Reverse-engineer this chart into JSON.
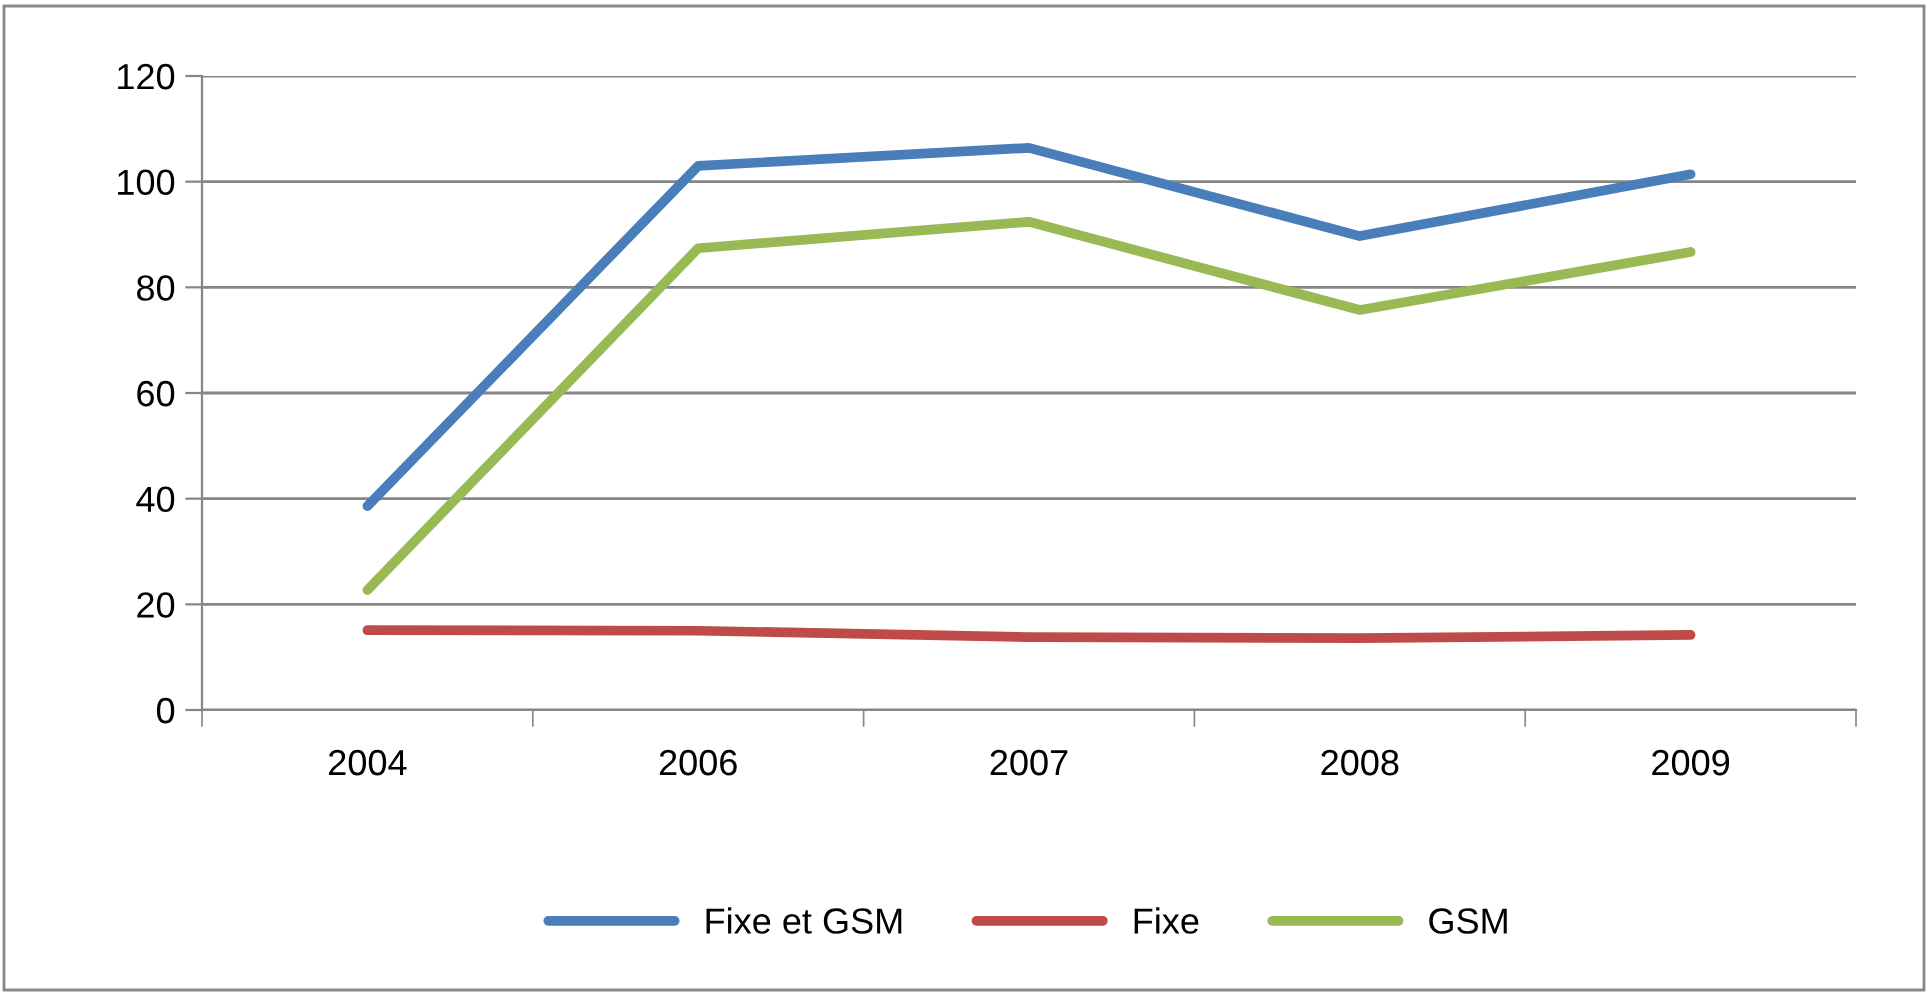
{
  "chart_data": {
    "type": "line",
    "categories": [
      "2004",
      "2006",
      "2007",
      "2008",
      "2009"
    ],
    "series": [
      {
        "name": "Fixe et GSM",
        "color": "#4a7ebb",
        "values": [
          38.6,
          103,
          106.4,
          89.7,
          101.4
        ]
      },
      {
        "name": "Fixe",
        "color": "#be4b48",
        "values": [
          15.1,
          15,
          13.8,
          13.6,
          14.2
        ]
      },
      {
        "name": "GSM",
        "color": "#98b954",
        "values": [
          22.7,
          87.4,
          92.4,
          75.7,
          86.7
        ]
      }
    ],
    "ylim": [
      0,
      120
    ],
    "yticks": [
      0,
      20,
      40,
      60,
      80,
      100,
      120
    ],
    "grid": "y",
    "legend": "bottom",
    "marker": "none",
    "line_style": "solid"
  }
}
